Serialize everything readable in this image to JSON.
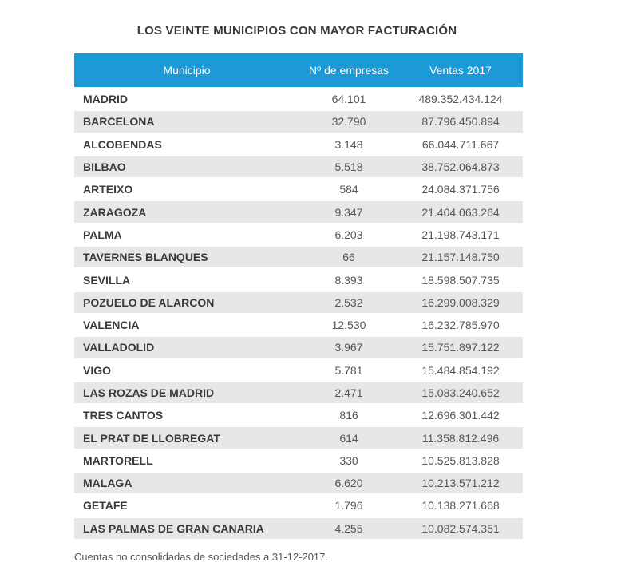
{
  "title": "LOS VEINTE MUNICIPIOS CON MAYOR FACTURACIÓN",
  "table": {
    "header": [
      "Municipio",
      "Nº de empresas",
      "Ventas 2017"
    ],
    "rows": [
      [
        "MADRID",
        "64.101",
        "489.352.434.124"
      ],
      [
        "BARCELONA",
        "32.790",
        "87.796.450.894"
      ],
      [
        "ALCOBENDAS",
        "3.148",
        "66.044.711.667"
      ],
      [
        "BILBAO",
        "5.518",
        "38.752.064.873"
      ],
      [
        "ARTEIXO",
        "584",
        "24.084.371.756"
      ],
      [
        "ZARAGOZA",
        "9.347",
        "21.404.063.264"
      ],
      [
        "PALMA",
        "6.203",
        "21.198.743.171"
      ],
      [
        "TAVERNES BLANQUES",
        "66",
        "21.157.148.750"
      ],
      [
        "SEVILLA",
        "8.393",
        "18.598.507.735"
      ],
      [
        "POZUELO DE ALARCON",
        "2.532",
        "16.299.008.329"
      ],
      [
        "VALENCIA",
        "12.530",
        "16.232.785.970"
      ],
      [
        "VALLADOLID",
        "3.967",
        "15.751.897.122"
      ],
      [
        "VIGO",
        "5.781",
        "15.484.854.192"
      ],
      [
        "LAS ROZAS DE MADRID",
        "2.471",
        "15.083.240.652"
      ],
      [
        "TRES CANTOS",
        "816",
        "12.696.301.442"
      ],
      [
        "EL PRAT DE LLOBREGAT",
        "614",
        "11.358.812.496"
      ],
      [
        "MARTORELL",
        "330",
        "10.525.813.828"
      ],
      [
        "MALAGA",
        "6.620",
        "10.213.571.212"
      ],
      [
        "GETAFE",
        "1.796",
        "10.138.271.668"
      ],
      [
        "LAS PALMAS DE GRAN CANARIA",
        "4.255",
        "10.082.574.351"
      ]
    ]
  },
  "note": "Cuentas no consolidadas de sociedades a 31-12-2017."
}
